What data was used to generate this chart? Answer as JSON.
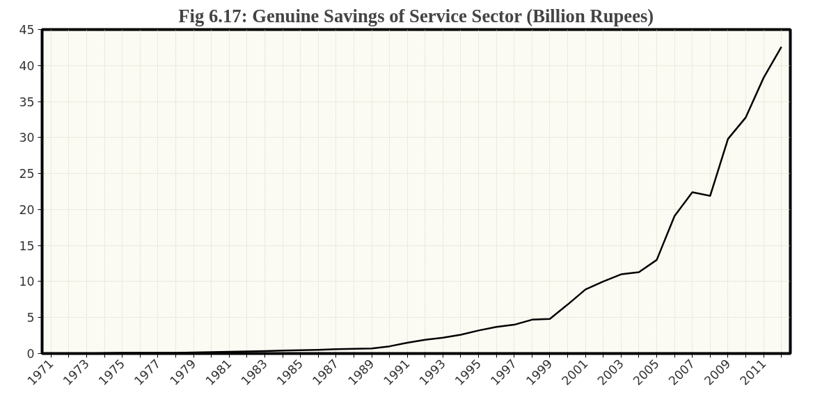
{
  "chart_data": {
    "type": "line",
    "title": "Fig 6.17: Genuine Savings of Service Sector (Billion Rupees)",
    "categories": [
      "1971",
      null,
      "1973",
      null,
      "1975",
      null,
      "1977",
      null,
      "1979",
      null,
      "1981",
      null,
      "1983",
      null,
      "1985",
      null,
      "1987",
      null,
      "1989",
      null,
      "1991",
      null,
      "1993",
      null,
      "1995",
      null,
      "1997",
      null,
      "1999",
      null,
      "2001",
      null,
      "2003",
      null,
      "2005",
      null,
      "2007",
      null,
      "2009",
      null,
      "2011",
      null
    ],
    "series": [
      {
        "color": "#000000",
        "values": [
          0,
          0,
          0,
          0.05,
          0.1,
          0.1,
          0.1,
          0.1,
          0.15,
          0.2,
          0.25,
          0.3,
          0.35,
          0.4,
          0.45,
          0.5,
          0.6,
          0.65,
          0.7,
          1.0,
          1.5,
          1.9,
          2.2,
          2.6,
          3.2,
          3.7,
          4.0,
          4.7,
          4.8,
          6.8,
          8.9,
          10.0,
          11.0,
          11.3,
          13.0,
          19.1,
          22.4,
          21.9,
          29.8,
          32.8,
          38.3,
          42.6
        ]
      }
    ],
    "ylim": [
      0,
      45
    ],
    "yticks": [
      0,
      5,
      10,
      15,
      20,
      25,
      30,
      35,
      40,
      45
    ],
    "grid": true,
    "marker": "none",
    "line_style": "solid"
  }
}
